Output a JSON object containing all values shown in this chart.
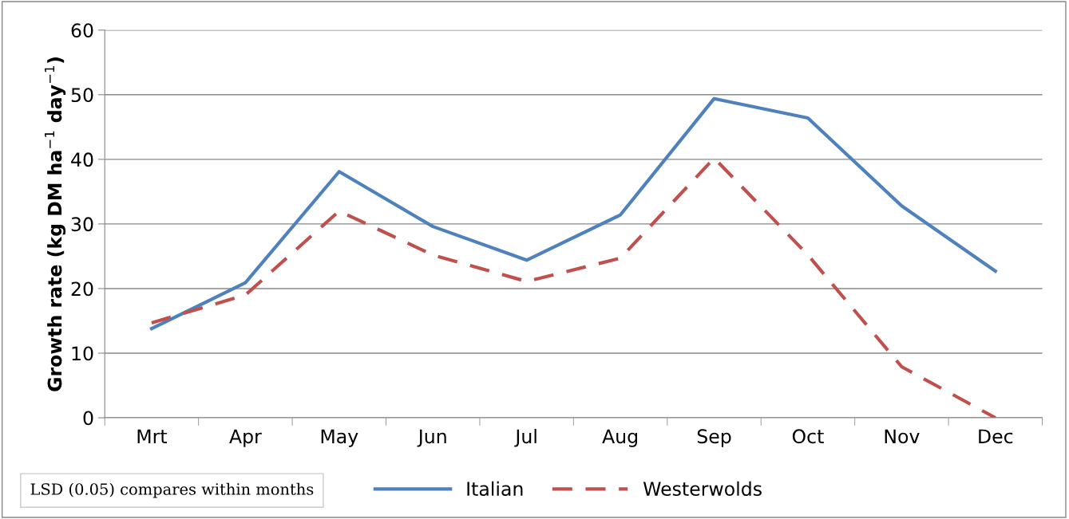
{
  "chart_data": {
    "type": "line",
    "ylabel": "Growth rate (kg DM ha$^{−1}$ day$^{−1}$)",
    "categories": [
      "Mrt",
      "Apr",
      "May",
      "Jun",
      "Jul",
      "Aug",
      "Sep",
      "Oct",
      "Nov",
      "Dec"
    ],
    "series": [
      {
        "name": "Italian",
        "color": "#4f81bd",
        "line_style": "solid",
        "values": [
          13.8,
          20.9,
          38.1,
          29.6,
          24.4,
          31.4,
          49.4,
          46.4,
          32.8,
          22.7
        ]
      },
      {
        "name": "Westerwolds",
        "color": "#c0504d",
        "line_style": "dashed",
        "values": [
          14.7,
          19.0,
          32.0,
          25.2,
          21.1,
          24.7,
          40.2,
          25.2,
          7.9,
          0
        ]
      }
    ],
    "ylim": [
      0,
      60
    ],
    "yticks": [
      0,
      10,
      20,
      30,
      40,
      50,
      60
    ],
    "grid": "y",
    "legend": "bottom",
    "marker": "none",
    "annotations": [
      "LSD (0.05) compares within months"
    ]
  }
}
